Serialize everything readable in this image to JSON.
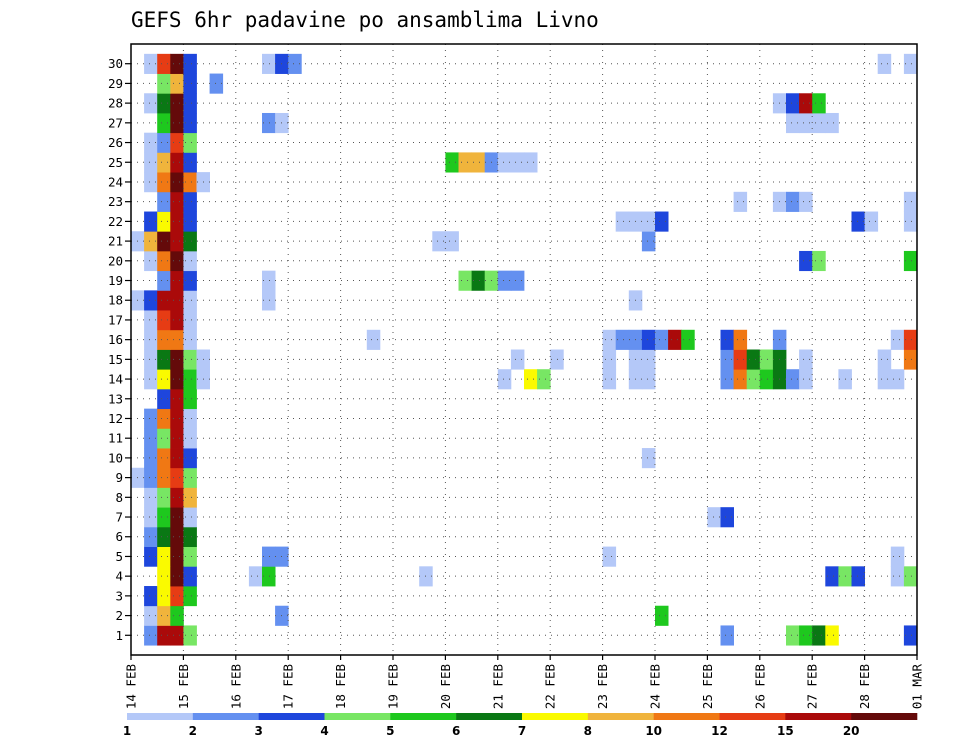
{
  "chart_data": {
    "type": "heatmap",
    "title": "GEFS 6hr padavine po ansamblima Livno",
    "xlabel": "",
    "ylabel": "",
    "x_ticks": [
      "14 FEB",
      "15 FEB",
      "16 FEB",
      "17 FEB",
      "18 FEB",
      "19 FEB",
      "20 FEB",
      "21 FEB",
      "22 FEB",
      "23 FEB",
      "24 FEB",
      "25 FEB",
      "26 FEB",
      "27 FEB",
      "28 FEB",
      "01 MAR"
    ],
    "y_ticks": [
      "1",
      "2",
      "3",
      "4",
      "5",
      "6",
      "7",
      "8",
      "9",
      "10",
      "11",
      "12",
      "13",
      "14",
      "15",
      "16",
      "17",
      "18",
      "19",
      "20",
      "21",
      "22",
      "23",
      "24",
      "25",
      "26",
      "27",
      "28",
      "29",
      "30"
    ],
    "time_steps_per_day": 4,
    "x_range": [
      "14 FEB",
      "01 MAR"
    ],
    "y_range": [
      0,
      30
    ],
    "grid": true,
    "legend": "bottom",
    "colorbar": {
      "labels": [
        "1",
        "2",
        "3",
        "4",
        "5",
        "6",
        "7",
        "8",
        "10",
        "12",
        "15",
        "20"
      ],
      "colors": [
        "#b4c8f8",
        "#6490f0",
        "#1e46dc",
        "#78e664",
        "#1ec81e",
        "#0a7814",
        "#fafa00",
        "#f0b43c",
        "#f07814",
        "#e63c14",
        "#aa0a0a",
        "#640a0a"
      ]
    },
    "levels_by_member": {
      "1": [
        [
          1,
          2
        ],
        [
          2,
          11
        ],
        [
          3,
          11
        ],
        [
          4,
          4
        ],
        [
          45,
          2
        ],
        [
          50,
          4
        ],
        [
          51,
          5
        ],
        [
          52,
          6
        ],
        [
          53,
          7
        ],
        [
          59,
          3
        ]
      ],
      "2": [
        [
          1,
          1
        ],
        [
          2,
          8
        ],
        [
          3,
          5
        ],
        [
          11,
          2
        ],
        [
          40,
          5
        ]
      ],
      "3": [
        [
          1,
          3
        ],
        [
          2,
          7
        ],
        [
          3,
          10
        ],
        [
          4,
          5
        ]
      ],
      "4": [
        [
          2,
          7
        ],
        [
          3,
          12
        ],
        [
          4,
          3
        ],
        [
          9,
          1
        ],
        [
          10,
          5
        ],
        [
          22,
          1
        ],
        [
          53,
          3
        ],
        [
          54,
          4
        ],
        [
          55,
          3
        ],
        [
          58,
          1
        ],
        [
          59,
          4
        ]
      ],
      "5": [
        [
          1,
          3
        ],
        [
          2,
          7
        ],
        [
          3,
          12
        ],
        [
          4,
          4
        ],
        [
          10,
          2
        ],
        [
          11,
          2
        ],
        [
          36,
          1
        ],
        [
          58,
          1
        ]
      ],
      "6": [
        [
          1,
          2
        ],
        [
          2,
          6
        ],
        [
          3,
          12
        ],
        [
          4,
          6
        ]
      ],
      "7": [
        [
          1,
          1
        ],
        [
          2,
          5
        ],
        [
          3,
          12
        ],
        [
          4,
          1
        ],
        [
          44,
          1
        ],
        [
          45,
          3
        ]
      ],
      "8": [
        [
          1,
          1
        ],
        [
          2,
          4
        ],
        [
          3,
          11
        ],
        [
          4,
          8
        ]
      ],
      "9": [
        [
          0,
          1
        ],
        [
          1,
          2
        ],
        [
          2,
          9
        ],
        [
          3,
          10
        ],
        [
          4,
          4
        ]
      ],
      "10": [
        [
          1,
          2
        ],
        [
          2,
          9
        ],
        [
          3,
          11
        ],
        [
          4,
          3
        ],
        [
          39,
          1
        ]
      ],
      "11": [
        [
          1,
          2
        ],
        [
          2,
          4
        ],
        [
          3,
          11
        ],
        [
          4,
          1
        ]
      ],
      "12": [
        [
          1,
          2
        ],
        [
          2,
          9
        ],
        [
          3,
          11
        ],
        [
          4,
          1
        ]
      ],
      "13": [
        [
          2,
          3
        ],
        [
          3,
          11
        ],
        [
          4,
          5
        ]
      ],
      "14": [
        [
          1,
          1
        ],
        [
          2,
          7
        ],
        [
          3,
          12
        ],
        [
          4,
          5
        ],
        [
          5,
          1
        ],
        [
          28,
          1
        ],
        [
          30,
          7
        ],
        [
          31,
          4
        ],
        [
          36,
          1
        ],
        [
          38,
          1
        ],
        [
          39,
          1
        ],
        [
          45,
          2
        ],
        [
          46,
          9
        ],
        [
          47,
          4
        ],
        [
          48,
          5
        ],
        [
          49,
          6
        ],
        [
          50,
          2
        ],
        [
          51,
          1
        ],
        [
          54,
          1
        ],
        [
          57,
          1
        ],
        [
          58,
          1
        ]
      ],
      "15": [
        [
          1,
          1
        ],
        [
          2,
          6
        ],
        [
          3,
          12
        ],
        [
          4,
          4
        ],
        [
          5,
          1
        ],
        [
          29,
          1
        ],
        [
          32,
          1
        ],
        [
          36,
          1
        ],
        [
          38,
          1
        ],
        [
          39,
          1
        ],
        [
          45,
          2
        ],
        [
          46,
          10
        ],
        [
          47,
          6
        ],
        [
          48,
          4
        ],
        [
          49,
          6
        ],
        [
          51,
          1
        ],
        [
          57,
          1
        ],
        [
          59,
          9
        ]
      ],
      "16": [
        [
          1,
          1
        ],
        [
          2,
          9
        ],
        [
          3,
          9
        ],
        [
          4,
          1
        ],
        [
          18,
          1
        ],
        [
          36,
          1
        ],
        [
          37,
          2
        ],
        [
          38,
          2
        ],
        [
          39,
          3
        ],
        [
          40,
          2
        ],
        [
          41,
          11
        ],
        [
          42,
          5
        ],
        [
          45,
          3
        ],
        [
          46,
          9
        ],
        [
          49,
          2
        ],
        [
          58,
          1
        ],
        [
          59,
          10
        ]
      ],
      "17": [
        [
          1,
          1
        ],
        [
          2,
          10
        ],
        [
          3,
          11
        ],
        [
          4,
          1
        ]
      ],
      "18": [
        [
          0,
          1
        ],
        [
          1,
          3
        ],
        [
          2,
          11
        ],
        [
          3,
          11
        ],
        [
          4,
          1
        ],
        [
          10,
          1
        ],
        [
          38,
          1
        ]
      ],
      "19": [
        [
          2,
          2
        ],
        [
          3,
          11
        ],
        [
          4,
          3
        ],
        [
          10,
          1
        ],
        [
          25,
          4
        ],
        [
          26,
          6
        ],
        [
          27,
          4
        ],
        [
          28,
          2
        ],
        [
          29,
          2
        ]
      ],
      "20": [
        [
          1,
          1
        ],
        [
          2,
          9
        ],
        [
          3,
          12
        ],
        [
          4,
          1
        ],
        [
          51,
          3
        ],
        [
          52,
          4
        ],
        [
          59,
          5
        ]
      ],
      "21": [
        [
          0,
          1
        ],
        [
          1,
          8
        ],
        [
          2,
          12
        ],
        [
          3,
          11
        ],
        [
          4,
          6
        ],
        [
          23,
          1
        ],
        [
          24,
          1
        ],
        [
          39,
          2
        ]
      ],
      "22": [
        [
          1,
          3
        ],
        [
          2,
          7
        ],
        [
          3,
          11
        ],
        [
          4,
          3
        ],
        [
          37,
          1
        ],
        [
          38,
          1
        ],
        [
          39,
          1
        ],
        [
          40,
          3
        ],
        [
          55,
          3
        ],
        [
          56,
          1
        ],
        [
          59,
          1
        ]
      ],
      "23": [
        [
          2,
          2
        ],
        [
          3,
          11
        ],
        [
          4,
          3
        ],
        [
          46,
          1
        ],
        [
          49,
          1
        ],
        [
          50,
          2
        ],
        [
          51,
          1
        ],
        [
          59,
          1
        ]
      ],
      "24": [
        [
          1,
          1
        ],
        [
          2,
          9
        ],
        [
          3,
          12
        ],
        [
          4,
          9
        ],
        [
          5,
          1
        ]
      ],
      "25": [
        [
          1,
          1
        ],
        [
          2,
          8
        ],
        [
          3,
          11
        ],
        [
          4,
          3
        ],
        [
          24,
          5
        ],
        [
          25,
          8
        ],
        [
          26,
          8
        ],
        [
          27,
          2
        ],
        [
          28,
          1
        ],
        [
          29,
          1
        ],
        [
          30,
          1
        ]
      ],
      "26": [
        [
          1,
          1
        ],
        [
          2,
          2
        ],
        [
          3,
          10
        ],
        [
          4,
          4
        ]
      ],
      "27": [
        [
          2,
          5
        ],
        [
          3,
          12
        ],
        [
          4,
          3
        ],
        [
          10,
          2
        ],
        [
          11,
          1
        ],
        [
          50,
          1
        ],
        [
          51,
          1
        ],
        [
          52,
          1
        ],
        [
          53,
          1
        ]
      ],
      "28": [
        [
          1,
          1
        ],
        [
          2,
          6
        ],
        [
          3,
          12
        ],
        [
          4,
          3
        ],
        [
          49,
          1
        ],
        [
          50,
          3
        ],
        [
          51,
          11
        ],
        [
          52,
          5
        ]
      ],
      "29": [
        [
          2,
          4
        ],
        [
          3,
          8
        ],
        [
          4,
          3
        ],
        [
          6,
          2
        ]
      ],
      "30": [
        [
          1,
          1
        ],
        [
          2,
          10
        ],
        [
          3,
          12
        ],
        [
          4,
          3
        ],
        [
          10,
          1
        ],
        [
          11,
          3
        ],
        [
          12,
          2
        ],
        [
          57,
          1
        ],
        [
          59,
          1
        ]
      ]
    }
  }
}
